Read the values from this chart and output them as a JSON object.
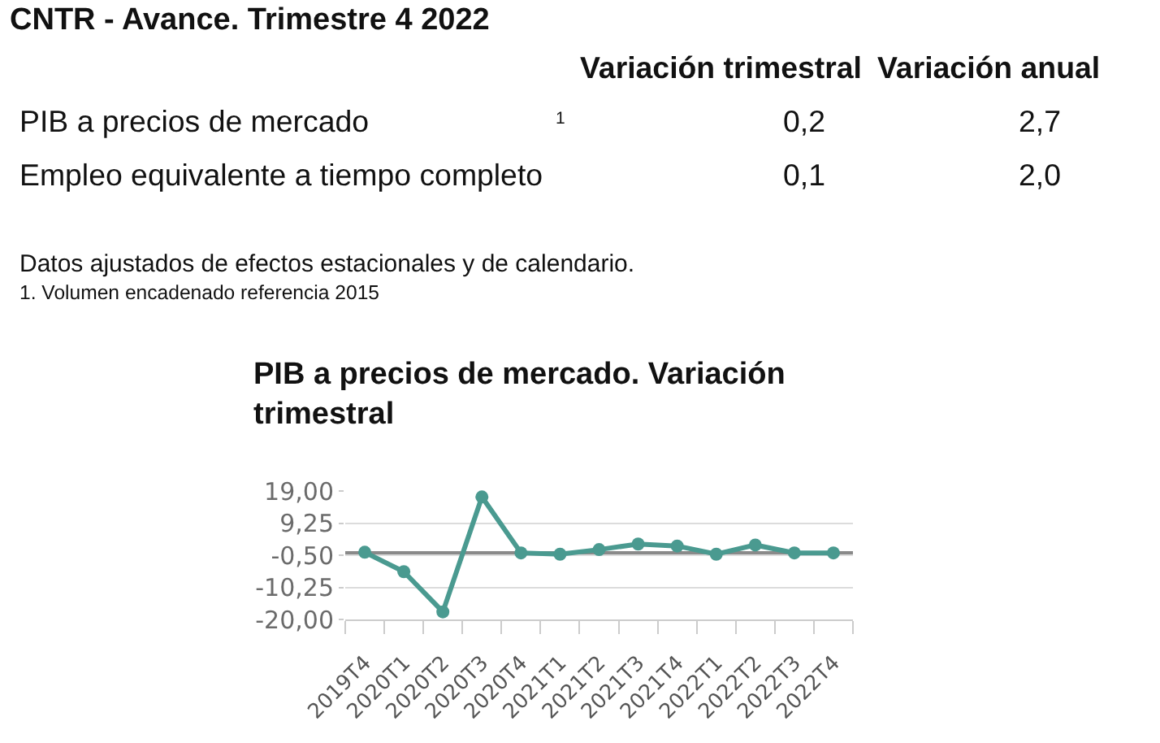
{
  "chart_data": [
    {
      "type": "other",
      "title": "CNTR - Avance. Trimestre 4 2022",
      "categories": [
        "PIB a precios de mercado",
        "Empleo equivalente a tiempo completo"
      ],
      "series": [
        {
          "name": "Variación trimestral",
          "values": [
            0.2,
            0.1
          ],
          "value_labels": [
            "0,2",
            "0,1"
          ]
        },
        {
          "name": "Variación anual",
          "values": [
            2.7,
            2.0
          ],
          "value_labels": [
            "2,7",
            "2,0"
          ]
        }
      ],
      "annotations": [
        "1",
        "Datos ajustados de efectos estacionales y de calendario.",
        "1. Volumen encadenado referencia 2015"
      ]
    },
    {
      "type": "line",
      "title": "PIB a precios de mercado. Variación trimestral",
      "categories": [
        "2019T4",
        "2020T1",
        "2020T2",
        "2020T3",
        "2020T4",
        "2021T1",
        "2021T2",
        "2021T3",
        "2021T4",
        "2022T1",
        "2022T2",
        "2022T3",
        "2022T4"
      ],
      "values": [
        0.4,
        -5.5,
        -17.7,
        17.2,
        0.2,
        -0.2,
        1.2,
        2.9,
        2.3,
        -0.2,
        2.6,
        0.2,
        0.2
      ],
      "color": "#4a9a90",
      "marker": "circle",
      "ylim": [
        -20,
        19
      ],
      "yticks": [
        {
          "value": 19,
          "label": "19,00"
        },
        {
          "value": 9.25,
          "label": "9,25"
        },
        {
          "value": -0.5,
          "label": "-0,50"
        },
        {
          "value": -10.25,
          "label": "-10,25"
        },
        {
          "value": -20,
          "label": "-20,00"
        }
      ],
      "grid": "y",
      "ref_lines": [
        {
          "axis": "y",
          "value": 0,
          "color": "#8a8a8a"
        }
      ]
    }
  ]
}
